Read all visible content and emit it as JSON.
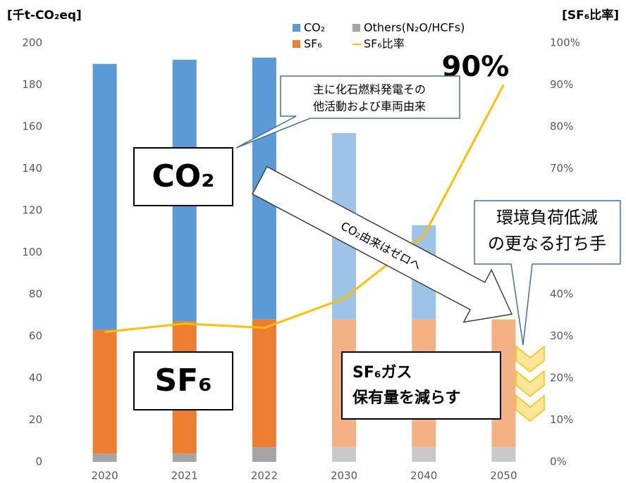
{
  "chart_data": {
    "type": "bar",
    "y_axis_label": "[千t-CO₂eq]",
    "y2_axis_label": "[SF₆比率]",
    "categories": [
      "2020",
      "2021",
      "2022",
      "2030",
      "2040",
      "2050"
    ],
    "series": [
      {
        "name": "Others(N₂O/HCFs)",
        "colors": [
          "#a5a5a5",
          "#a5a5a5",
          "#a5a5a5",
          "#c9c9c9",
          "#c9c9c9",
          "#c9c9c9"
        ],
        "values": [
          4,
          4,
          7,
          7,
          7,
          7
        ]
      },
      {
        "name": "SF₆",
        "colors": [
          "#ed7d31",
          "#ed7d31",
          "#ed7d31",
          "#f4b183",
          "#f4b183",
          "#f4b183"
        ],
        "values": [
          59,
          63,
          61,
          61,
          61,
          61
        ]
      },
      {
        "name": "CO₂",
        "colors": [
          "#5b9bd5",
          "#5b9bd5",
          "#5b9bd5",
          "#9dc3e6",
          "#9dc3e6",
          "#9dc3e6"
        ],
        "values": [
          127,
          125,
          125,
          89,
          45,
          0
        ]
      },
      {
        "name": "SF₆比率",
        "type": "line",
        "axis": "y2",
        "color": "#ffc000",
        "values": [
          31,
          33,
          32,
          39,
          54,
          90
        ],
        "value_labels": [
          null,
          null,
          null,
          null,
          null,
          "90%"
        ]
      }
    ],
    "ylim": [
      0,
      200
    ],
    "yticks": [
      0,
      20,
      40,
      60,
      80,
      100,
      120,
      140,
      160,
      180,
      200
    ],
    "y2lim": [
      0,
      100
    ],
    "y2ticks": [
      {
        "value": 0,
        "label": "0%"
      },
      {
        "value": 10,
        "label": "10%"
      },
      {
        "value": 20,
        "label": "20%"
      },
      {
        "value": 30,
        "label": "30%"
      },
      {
        "value": 40,
        "label": "40%"
      },
      {
        "value": 50,
        "label": "50%"
      },
      {
        "value": 60,
        "label": "60%"
      },
      {
        "value": 70,
        "label": "70%"
      },
      {
        "value": 80,
        "label": "80%"
      },
      {
        "value": 90,
        "label": "90%"
      },
      {
        "value": 100,
        "label": "100%"
      }
    ],
    "annotations": {
      "callout": [
        "主に化石燃料発電その",
        "他活動および車両由来"
      ],
      "co2_box": "CO₂",
      "sf6_box": "SF₆",
      "arrow": "CO₂由来はゼロへ",
      "measure": [
        "環境負荷低減",
        "の更なる打ち手"
      ],
      "reduce": [
        "SF₆ガス",
        "保有量を減らす"
      ]
    }
  }
}
